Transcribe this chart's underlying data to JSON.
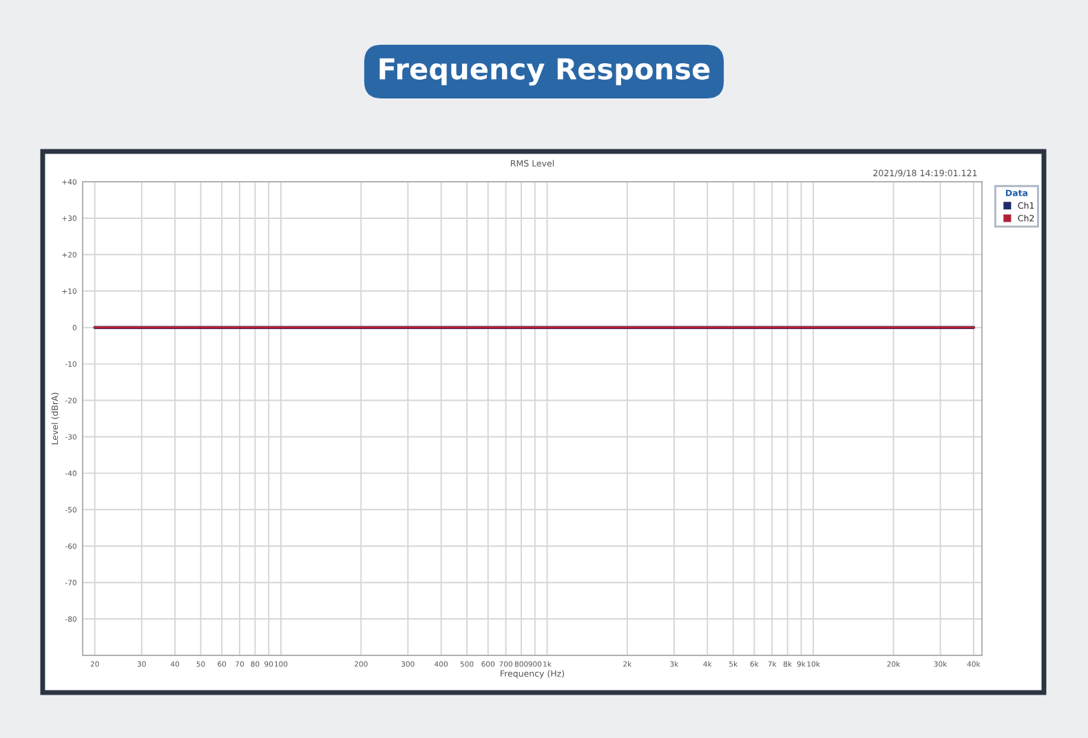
{
  "chart_data": {
    "type": "line",
    "title": "Frequency Response",
    "subtitle": "RMS Level",
    "xlabel": "Frequency (Hz)",
    "ylabel": "Level (dBrA)",
    "legend_title": "Data",
    "annotations": [
      "2021/9/18 14:19:01.121"
    ],
    "x": [
      20,
      40000
    ],
    "series": [
      {
        "name": "Ch1",
        "color": "#1f2a6b",
        "values": [
          0,
          0
        ]
      },
      {
        "name": "Ch2",
        "color": "#b22234",
        "values": [
          0,
          0
        ]
      }
    ],
    "log": "x",
    "xlim": [
      18,
      43000
    ],
    "ylim": [
      -90,
      40
    ],
    "xticks": [
      20,
      30,
      40,
      50,
      60,
      70,
      80,
      90,
      100,
      200,
      300,
      400,
      500,
      600,
      700,
      800,
      900,
      {
        "value": 1000,
        "label": "1k"
      },
      {
        "value": 2000,
        "label": "2k"
      },
      {
        "value": 3000,
        "label": "3k"
      },
      {
        "value": 4000,
        "label": "4k"
      },
      {
        "value": 5000,
        "label": "5k"
      },
      {
        "value": 6000,
        "label": "6k"
      },
      {
        "value": 7000,
        "label": "7k"
      },
      {
        "value": 8000,
        "label": "8k"
      },
      {
        "value": 9000,
        "label": "9k"
      },
      {
        "value": 10000,
        "label": "10k"
      },
      {
        "value": 20000,
        "label": "20k"
      },
      {
        "value": 30000,
        "label": "30k"
      },
      {
        "value": 40000,
        "label": "40k"
      }
    ],
    "yticks": [
      {
        "value": 40,
        "label": "+40"
      },
      {
        "value": 30,
        "label": "+30"
      },
      {
        "value": 20,
        "label": "+20"
      },
      {
        "value": 10,
        "label": "+10"
      },
      0,
      -10,
      -20,
      -30,
      -40,
      -50,
      -60,
      -70,
      -80
    ],
    "grid": true,
    "legend": "right",
    "marker": "none",
    "line_style": "solid"
  }
}
